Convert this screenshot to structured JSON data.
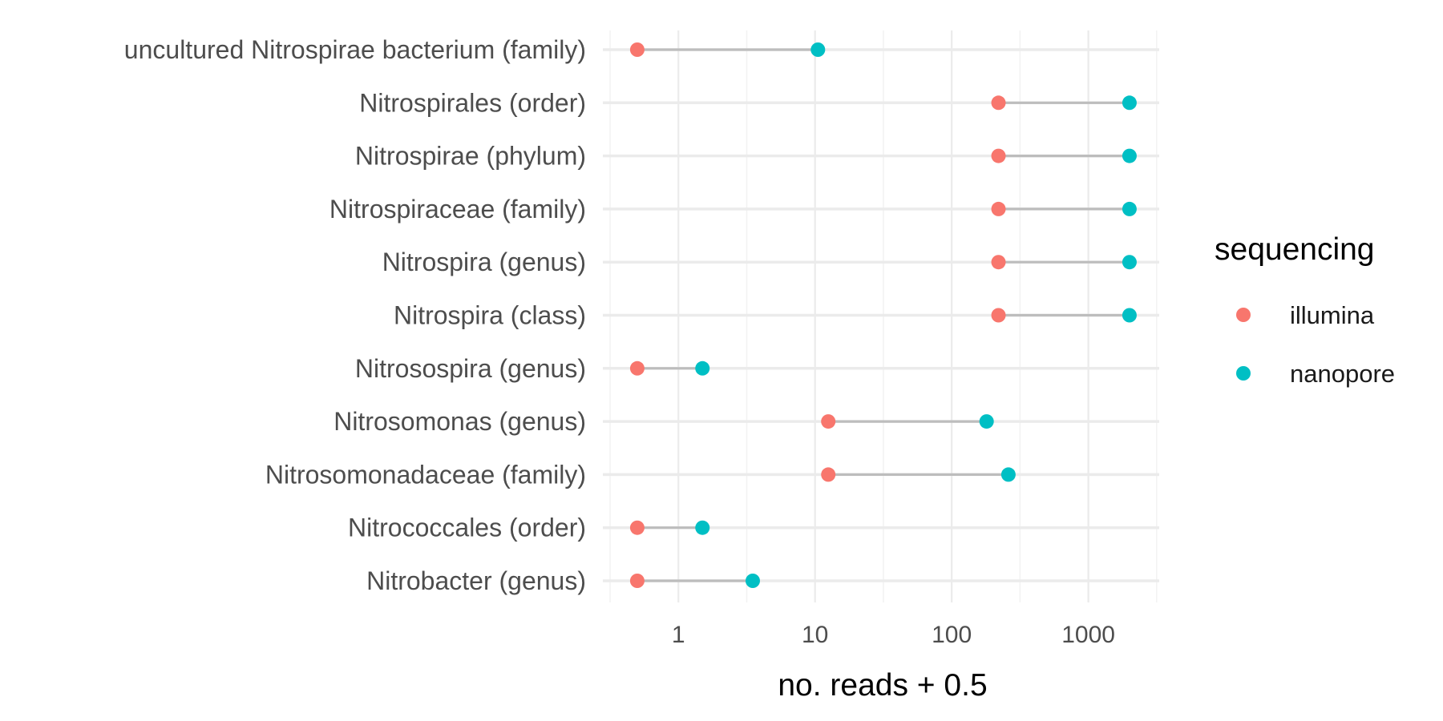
{
  "chart_data": {
    "type": "dumbbell",
    "xlabel": "no. reads + 0.5",
    "ylabel": "",
    "x_scale": "log10",
    "xlim": [
      0.28,
      3300
    ],
    "x_ticks": [
      1,
      10,
      100,
      1000
    ],
    "x_tick_labels": [
      "1",
      "10",
      "100",
      "1000"
    ],
    "grid": true,
    "categories": [
      "uncultured Nitrospirae bacterium (family)",
      "Nitrospirales (order)",
      "Nitrospirae (phylum)",
      "Nitrospiraceae (family)",
      "Nitrospira (genus)",
      "Nitrospira (class)",
      "Nitrosospira (genus)",
      "Nitrosomonas (genus)",
      "Nitrosomonadaceae (family)",
      "Nitrococcales (order)",
      "Nitrobacter (genus)"
    ],
    "legend": {
      "title": "sequencing",
      "position": "right"
    },
    "series": [
      {
        "name": "illumina",
        "color": "#F8766D",
        "values": [
          0.5,
          220,
          220,
          220,
          220,
          220,
          0.5,
          12.5,
          12.5,
          0.5,
          0.5
        ]
      },
      {
        "name": "nanopore",
        "color": "#00BFC4",
        "values": [
          10.5,
          2000,
          2000,
          2000,
          2000,
          2000,
          1.5,
          180,
          260,
          1.5,
          3.5
        ]
      }
    ],
    "segment_color": "#bdbdbd"
  }
}
